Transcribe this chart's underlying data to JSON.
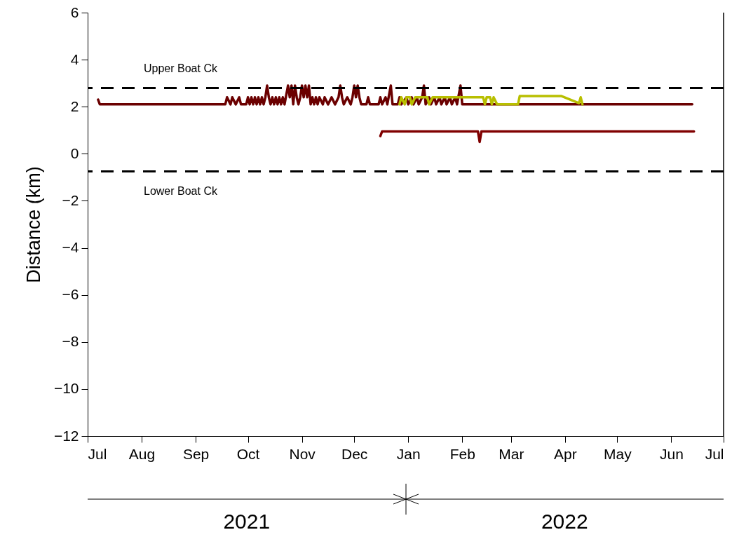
{
  "chart_data": {
    "type": "line",
    "ylabel": "Distance (km)",
    "xlim": [
      "2021-07-01",
      "2022-07-01"
    ],
    "xticks": [
      {
        "value": "2021-07-01",
        "label": "Jul"
      },
      {
        "value": "2021-08-01",
        "label": "Aug"
      },
      {
        "value": "2021-09-01",
        "label": "Sep"
      },
      {
        "value": "2021-10-01",
        "label": "Oct"
      },
      {
        "value": "2021-11-01",
        "label": "Nov"
      },
      {
        "value": "2021-12-01",
        "label": "Dec"
      },
      {
        "value": "2022-01-01",
        "label": "Jan"
      },
      {
        "value": "2022-02-01",
        "label": "Feb"
      },
      {
        "value": "2022-03-01",
        "label": "Mar"
      },
      {
        "value": "2022-04-01",
        "label": "Apr"
      },
      {
        "value": "2022-05-01",
        "label": "May"
      },
      {
        "value": "2022-06-01",
        "label": "Jun"
      },
      {
        "value": "2022-07-01",
        "label": "Jul"
      }
    ],
    "ylim": [
      -12,
      6
    ],
    "yticks": [
      -12,
      -10,
      -8,
      -6,
      -4,
      -2,
      0,
      2,
      4,
      6
    ],
    "grid": false,
    "marker": "none",
    "line_style": "solid",
    "series": [
      {
        "color": "#6b0000",
        "x": [
          "2021-07-07",
          "2021-07-08",
          "2021-09-18",
          "2021-09-19",
          "2021-09-21",
          "2021-09-22",
          "2021-09-24",
          "2021-09-26",
          "2021-09-27",
          "2021-09-30",
          "2021-10-01",
          "2021-10-02",
          "2021-10-03",
          "2021-10-04",
          "2021-10-05",
          "2021-10-06",
          "2021-10-07",
          "2021-10-08",
          "2021-10-09",
          "2021-10-10",
          "2021-10-11",
          "2021-10-12",
          "2021-10-13",
          "2021-10-14",
          "2021-10-15",
          "2021-10-16",
          "2021-10-17",
          "2021-10-18",
          "2021-10-19",
          "2021-10-20",
          "2021-10-21",
          "2021-10-22",
          "2021-10-24",
          "2021-10-25",
          "2021-10-26",
          "2021-10-27",
          "2021-10-28",
          "2021-10-29",
          "2021-10-30",
          "2021-10-31",
          "2021-11-01",
          "2021-11-02",
          "2021-11-03",
          "2021-11-04",
          "2021-11-05",
          "2021-11-06",
          "2021-11-07",
          "2021-11-08",
          "2021-11-09",
          "2021-11-10",
          "2021-11-11",
          "2021-11-13",
          "2021-11-14",
          "2021-11-16",
          "2021-11-18",
          "2021-11-20",
          "2021-11-22",
          "2021-11-23",
          "2021-11-24",
          "2021-11-25",
          "2021-11-27",
          "2021-11-29",
          "2021-11-30",
          "2021-12-01",
          "2021-12-02",
          "2021-12-03",
          "2021-12-04",
          "2021-12-05",
          "2021-12-08",
          "2021-12-09",
          "2021-12-10",
          "2021-12-15",
          "2021-12-16",
          "2021-12-17",
          "2021-12-19",
          "2021-12-20",
          "2021-12-22",
          "2021-12-23",
          "2021-12-26",
          "2021-12-27",
          "2021-12-28",
          "2021-12-31",
          "2022-01-01",
          "2022-01-03",
          "2022-01-04",
          "2022-01-06",
          "2022-01-07",
          "2022-01-09",
          "2022-01-10",
          "2022-01-11",
          "2022-01-13",
          "2022-01-14",
          "2022-01-16",
          "2022-01-17",
          "2022-01-19",
          "2022-01-20",
          "2022-01-22",
          "2022-01-23",
          "2022-01-25",
          "2022-01-26",
          "2022-01-28",
          "2022-01-29",
          "2022-01-31",
          "2022-02-01",
          "2022-06-13"
        ],
        "values": [
          2.3,
          2.1,
          2.1,
          2.4,
          2.1,
          2.4,
          2.1,
          2.4,
          2.1,
          2.1,
          2.4,
          2.1,
          2.4,
          2.1,
          2.4,
          2.1,
          2.4,
          2.1,
          2.4,
          2.1,
          2.4,
          2.9,
          2.4,
          2.1,
          2.4,
          2.1,
          2.4,
          2.1,
          2.4,
          2.1,
          2.4,
          2.1,
          2.9,
          2.4,
          2.9,
          2.1,
          2.9,
          2.4,
          2.1,
          2.4,
          2.9,
          2.4,
          2.9,
          2.4,
          2.9,
          2.1,
          2.4,
          2.1,
          2.4,
          2.1,
          2.4,
          2.1,
          2.4,
          2.1,
          2.4,
          2.1,
          2.4,
          2.9,
          2.4,
          2.1,
          2.4,
          2.1,
          2.4,
          2.9,
          2.4,
          2.9,
          2.4,
          2.1,
          2.1,
          2.4,
          2.1,
          2.1,
          2.4,
          2.1,
          2.4,
          2.1,
          2.9,
          2.1,
          2.1,
          2.4,
          2.1,
          2.4,
          2.1,
          2.4,
          2.1,
          2.4,
          2.1,
          2.4,
          2.9,
          2.1,
          2.4,
          2.1,
          2.4,
          2.1,
          2.4,
          2.1,
          2.4,
          2.1,
          2.4,
          2.1,
          2.4,
          2.1,
          2.9,
          2.1,
          2.1
        ]
      },
      {
        "color": "#b8bf00",
        "x": [
          "2021-12-27",
          "2021-12-28",
          "2021-12-30",
          "2021-12-31",
          "2022-01-02",
          "2022-01-03",
          "2022-01-05",
          "2022-01-12",
          "2022-01-13",
          "2022-01-15",
          "2022-01-30",
          "2022-02-13",
          "2022-02-14",
          "2022-02-15",
          "2022-02-17",
          "2022-02-18",
          "2022-02-19",
          "2022-02-21",
          "2022-03-05",
          "2022-03-06",
          "2022-03-30",
          "2022-04-09",
          "2022-04-10",
          "2022-04-11"
        ],
        "values": [
          2.1,
          2.4,
          2.1,
          2.4,
          2.4,
          2.1,
          2.4,
          2.4,
          2.1,
          2.4,
          2.4,
          2.4,
          2.1,
          2.4,
          2.4,
          2.1,
          2.4,
          2.1,
          2.1,
          2.45,
          2.45,
          2.15,
          2.4,
          2.1
        ]
      },
      {
        "color": "#800000",
        "x": [
          "2021-12-16",
          "2021-12-17",
          "2022-02-10",
          "2022-02-11",
          "2022-02-12",
          "2022-06-14"
        ],
        "values": [
          0.75,
          0.95,
          0.95,
          0.5,
          0.95,
          0.95
        ]
      }
    ],
    "ref_lines": [
      {
        "axis": "y",
        "value": 2.8,
        "label": "Upper Boat Ck",
        "color": "#000000",
        "line_style": "dashed"
      },
      {
        "axis": "y",
        "value": -0.75,
        "label": "Lower Boat Ck",
        "color": "#000000",
        "line_style": "dashed"
      }
    ],
    "annotations": [
      "2021",
      "2022"
    ]
  }
}
